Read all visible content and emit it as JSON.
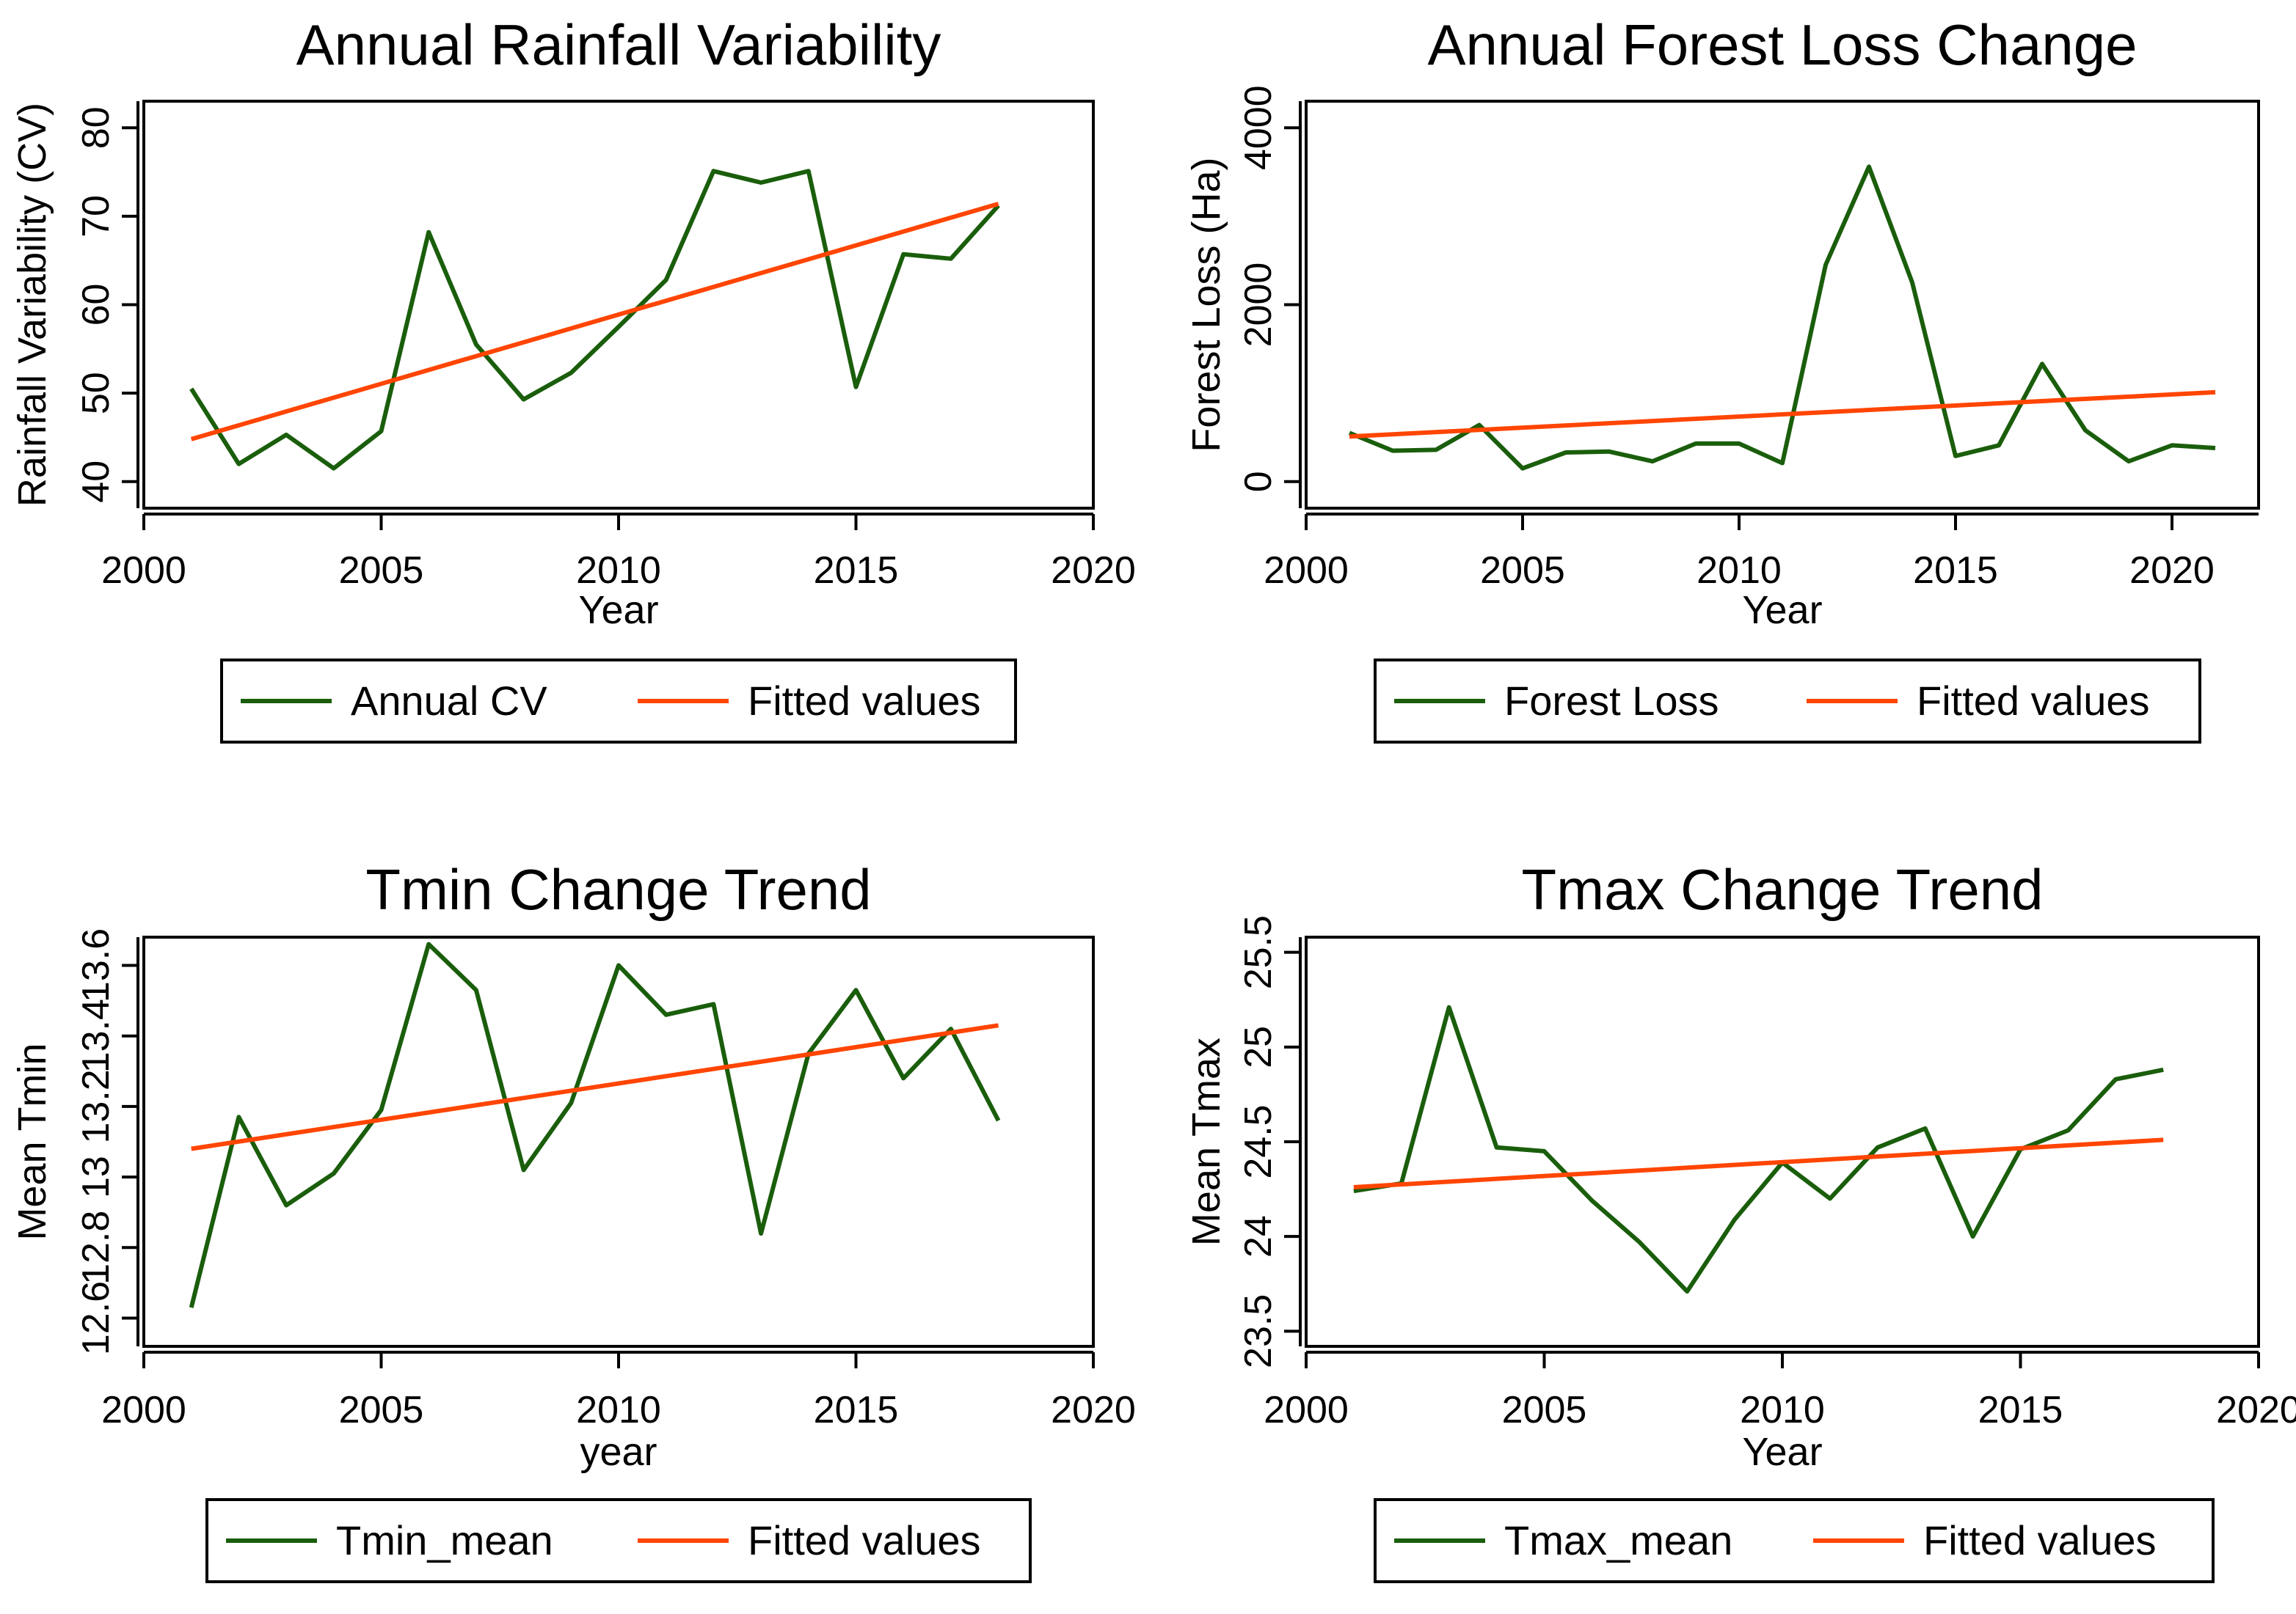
{
  "colors": {
    "series": "#1a5e0c",
    "fitted": "#ff4500",
    "axis": "#000000",
    "background": "#ffffff"
  },
  "chart_data": [
    {
      "type": "line",
      "title": "Annual Rainfall Variability",
      "xlabel": "Year",
      "ylabel": "Rainfall Variability (CV)",
      "xlim": [
        2000,
        2020
      ],
      "ylim": [
        37,
        83
      ],
      "xticks": [
        "2000",
        "2005",
        "2010",
        "2015",
        "2020"
      ],
      "yticks": [
        "40",
        "50",
        "60",
        "70",
        "80"
      ],
      "grid": false,
      "legend_position": "bottom",
      "series": [
        {
          "name": "Annual CV",
          "x": [
            2001,
            2002,
            2003,
            2004,
            2005,
            2006,
            2007,
            2008,
            2009,
            2010,
            2011,
            2012,
            2013,
            2014,
            2015,
            2016,
            2017,
            2018
          ],
          "y": [
            50.5,
            42.0,
            45.3,
            41.5,
            45.7,
            68.2,
            55.5,
            49.3,
            52.3,
            57.5,
            62.8,
            75.1,
            73.8,
            75.1,
            50.7,
            65.7,
            65.2,
            71.2
          ]
        },
        {
          "name": "Fitted values",
          "x": [
            2001,
            2018
          ],
          "y": [
            44.8,
            71.4
          ]
        }
      ]
    },
    {
      "type": "line",
      "title": "Annual Forest Loss Change",
      "xlabel": "Year",
      "ylabel": "Forest Loss (Ha)",
      "xlim": [
        2000,
        2022
      ],
      "ylim": [
        -300,
        4300
      ],
      "xticks": [
        "2000",
        "2005",
        "2010",
        "2015",
        "2020"
      ],
      "yticks": [
        "0",
        "2000",
        "4000"
      ],
      "grid": false,
      "legend_position": "bottom",
      "series": [
        {
          "name": "Forest Loss",
          "x": [
            2001,
            2002,
            2003,
            2004,
            2005,
            2006,
            2007,
            2008,
            2009,
            2010,
            2011,
            2012,
            2013,
            2014,
            2015,
            2016,
            2017,
            2018,
            2019,
            2020,
            2021
          ],
          "y": [
            550,
            350,
            360,
            640,
            150,
            330,
            340,
            230,
            430,
            430,
            210,
            2450,
            3560,
            2250,
            290,
            410,
            1330,
            580,
            230,
            410,
            380
          ]
        },
        {
          "name": "Fitted values",
          "x": [
            2001,
            2021
          ],
          "y": [
            510,
            1010
          ]
        }
      ]
    },
    {
      "type": "line",
      "title": "Tmin Change Trend",
      "xlabel": "year",
      "ylabel": "Mean Tmin",
      "xlim": [
        2000,
        2020
      ],
      "ylim": [
        12.52,
        13.68
      ],
      "xticks": [
        "2000",
        "2005",
        "2010",
        "2015",
        "2020"
      ],
      "yticks": [
        "12.6",
        "12.8",
        "13",
        "13.2",
        "13.4",
        "13.6"
      ],
      "grid": false,
      "legend_position": "bottom",
      "series": [
        {
          "name": "Tmin_mean",
          "x": [
            2001,
            2002,
            2003,
            2004,
            2005,
            2006,
            2007,
            2008,
            2009,
            2010,
            2011,
            2012,
            2013,
            2014,
            2015,
            2016,
            2017,
            2018
          ],
          "y": [
            12.63,
            13.17,
            12.92,
            13.01,
            13.19,
            13.66,
            13.53,
            13.02,
            13.21,
            13.6,
            13.46,
            13.49,
            12.84,
            13.35,
            13.53,
            13.28,
            13.42,
            13.16
          ]
        },
        {
          "name": "Fitted values",
          "x": [
            2001,
            2018
          ],
          "y": [
            13.08,
            13.43
          ]
        }
      ]
    },
    {
      "type": "line",
      "title": "Tmax Change  Trend",
      "xlabel": "Year",
      "ylabel": "Mean Tmax",
      "xlim": [
        2000,
        2020
      ],
      "ylim": [
        23.42,
        25.58
      ],
      "xticks": [
        "2000",
        "2005",
        "2010",
        "2015",
        "2020"
      ],
      "yticks": [
        "23.5",
        "24",
        "24.5",
        "25",
        "25.5"
      ],
      "grid": false,
      "legend_position": "bottom",
      "series": [
        {
          "name": "Tmax_mean",
          "x": [
            2001,
            2002,
            2003,
            2004,
            2005,
            2006,
            2007,
            2008,
            2009,
            2010,
            2011,
            2012,
            2013,
            2014,
            2015,
            2016,
            2017,
            2018
          ],
          "y": [
            24.24,
            24.28,
            25.21,
            24.47,
            24.45,
            24.19,
            23.97,
            23.71,
            24.09,
            24.39,
            24.2,
            24.47,
            24.57,
            24.0,
            24.46,
            24.56,
            24.83,
            24.88
          ]
        },
        {
          "name": "Fitted values",
          "x": [
            2001,
            2018
          ],
          "y": [
            24.26,
            24.51
          ]
        }
      ]
    }
  ]
}
